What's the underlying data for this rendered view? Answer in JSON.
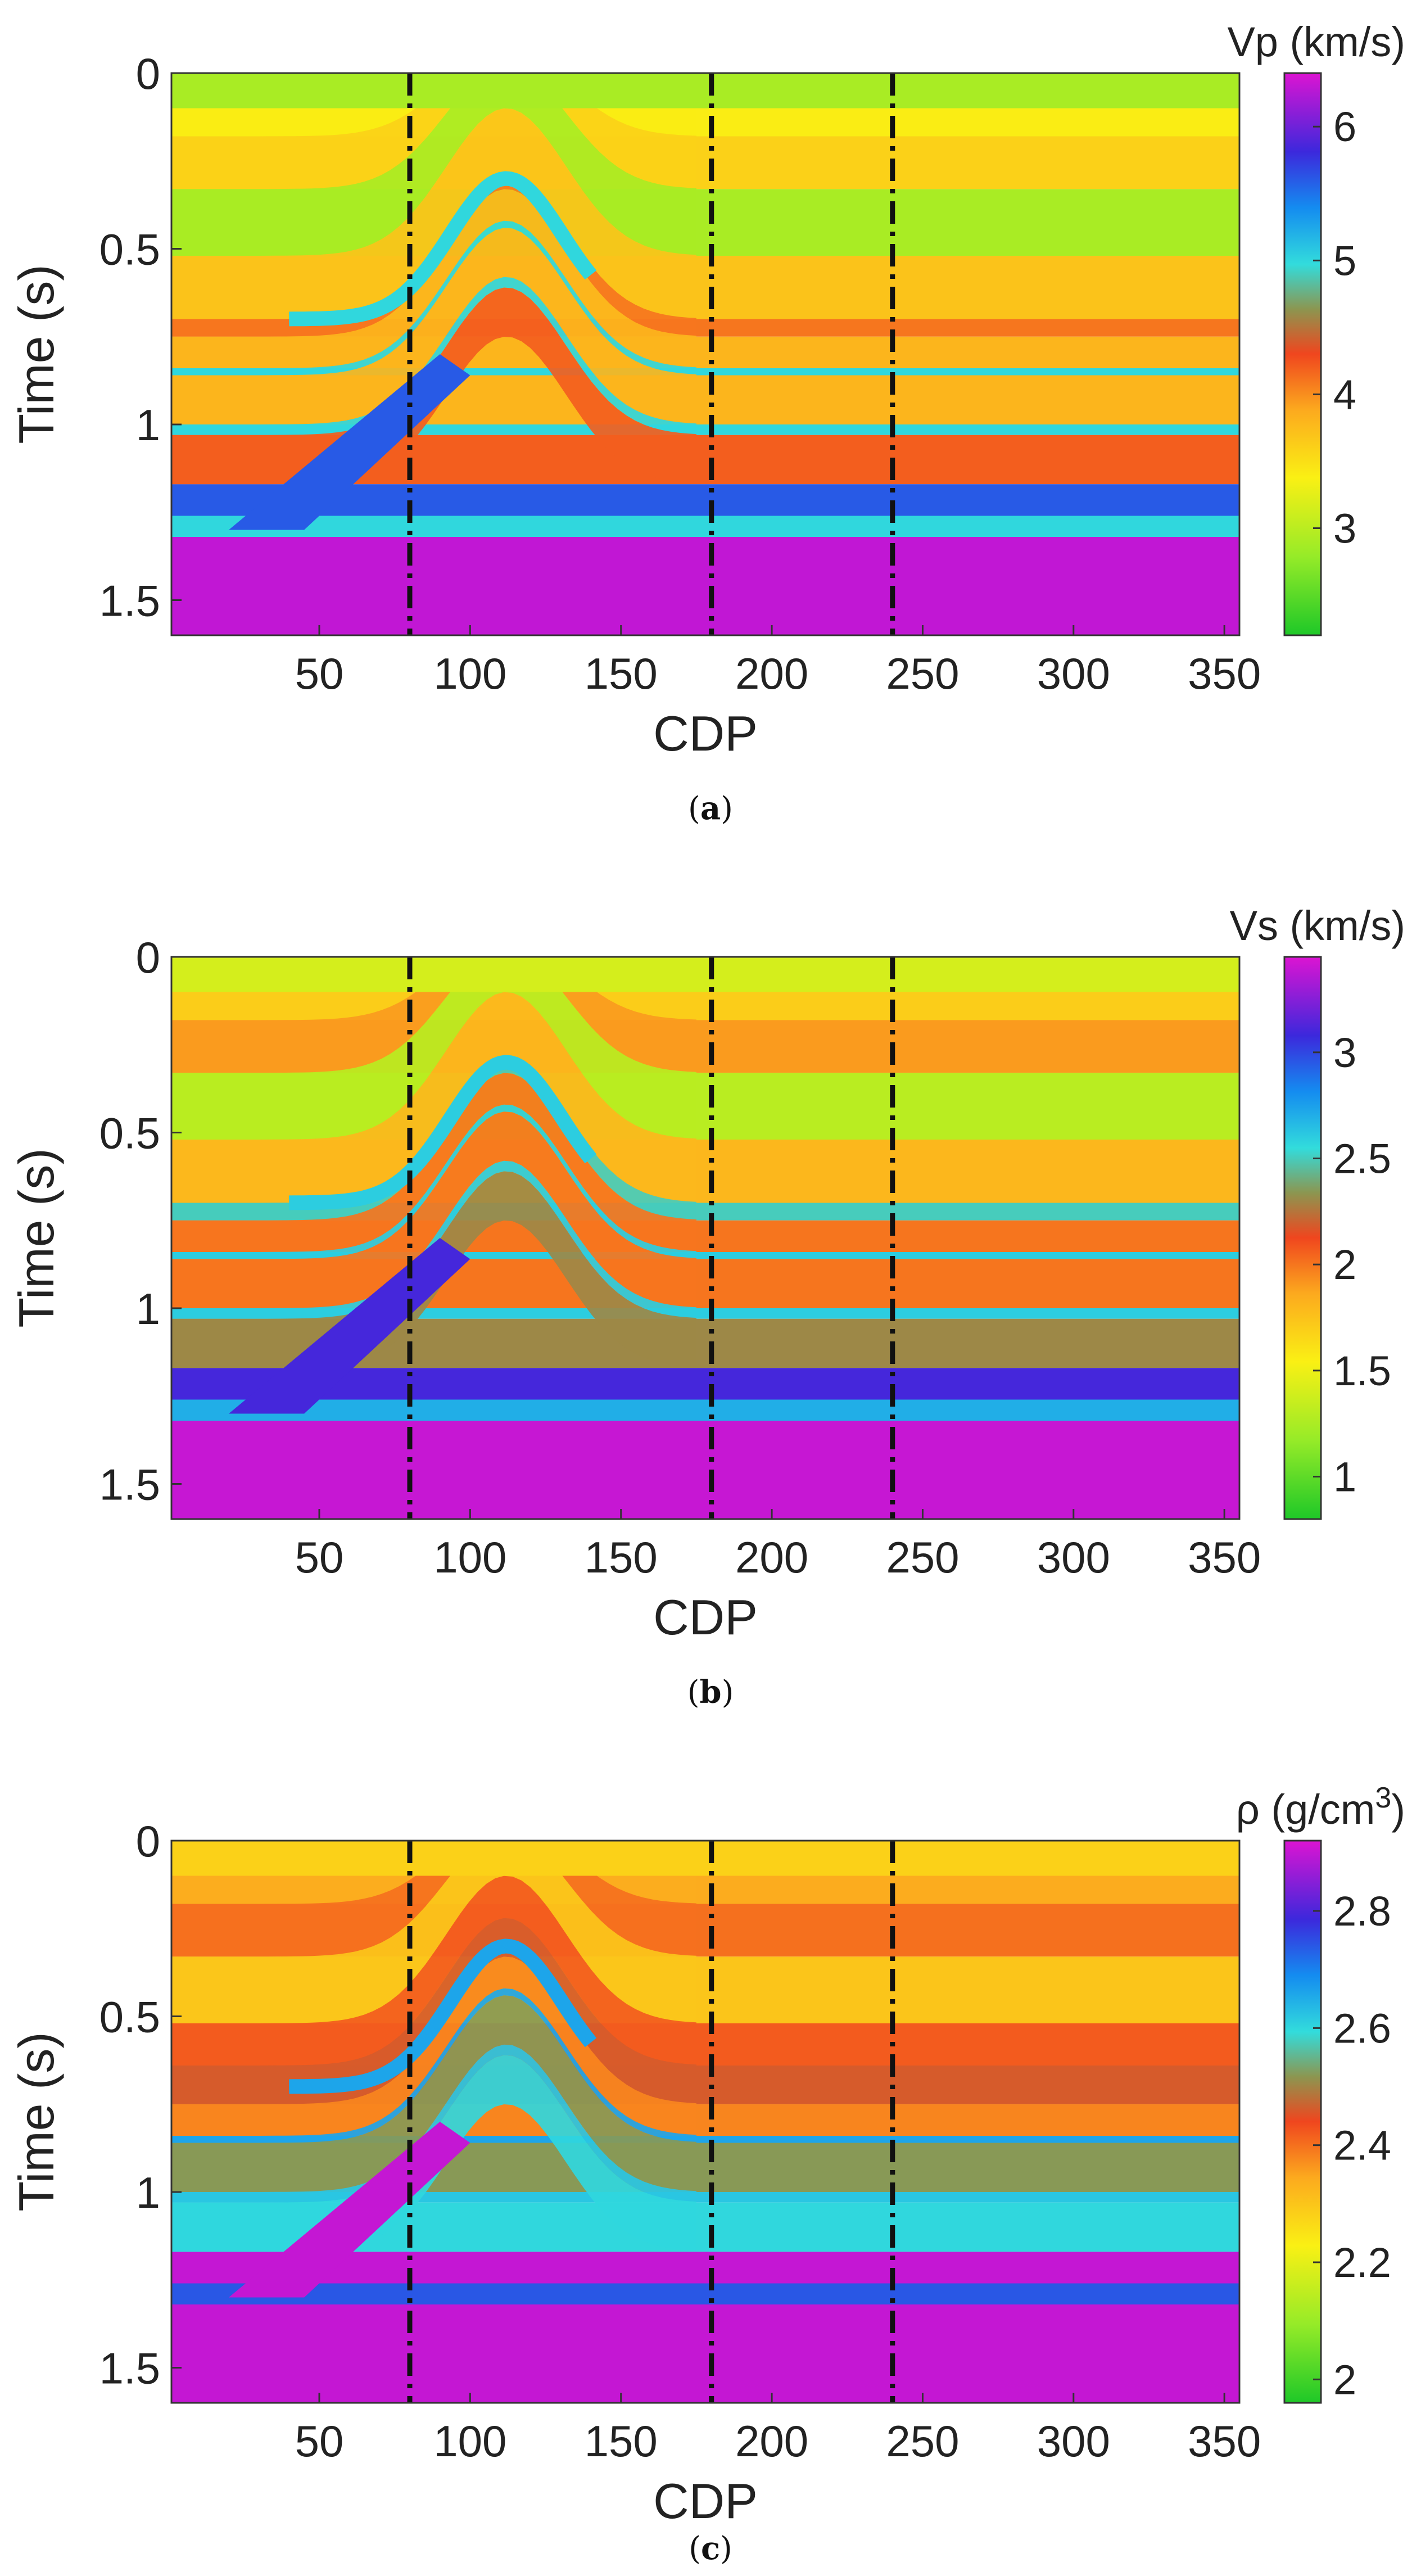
{
  "chart_data": [
    {
      "type": "heatmap",
      "panel_label": "a",
      "title": "",
      "xlabel": "CDP",
      "ylabel": "Time (s)",
      "colorbar_label": "Vp (km/s)",
      "xlim": [
        1,
        355
      ],
      "ylim": [
        0,
        1.6
      ],
      "y_reversed": true,
      "x_ticks": [
        50,
        100,
        150,
        200,
        250,
        300,
        350
      ],
      "y_ticks": [
        0,
        0.5,
        1,
        1.5
      ],
      "y_tick_labels": [
        "0",
        "0.5",
        "1",
        "1.5"
      ],
      "colorbar_range": [
        2.2,
        6.4
      ],
      "colorbar_ticks": [
        3,
        4,
        5,
        6
      ],
      "vertical_lines_cdp": [
        80,
        180,
        240
      ],
      "layers": [
        {
          "top": 0.0,
          "bottom": 0.1,
          "value": 2.9
        },
        {
          "top": 0.1,
          "bottom": 0.18,
          "value": 3.4
        },
        {
          "top": 0.18,
          "bottom": 0.33,
          "value": 3.6
        },
        {
          "top": 0.33,
          "bottom": 0.52,
          "value": 2.9
        },
        {
          "top": 0.52,
          "bottom": 0.7,
          "value": 3.7
        },
        {
          "top": 0.7,
          "bottom": 0.75,
          "value": 4.1
        },
        {
          "top": 0.75,
          "bottom": 0.84,
          "value": 3.8
        },
        {
          "top": 0.84,
          "bottom": 0.86,
          "value": 5.0
        },
        {
          "top": 0.86,
          "bottom": 1.0,
          "value": 3.8
        },
        {
          "top": 1.0,
          "bottom": 1.03,
          "value": 5.0
        },
        {
          "top": 1.03,
          "bottom": 1.17,
          "value": 4.2
        },
        {
          "top": 1.17,
          "bottom": 1.26,
          "value": 5.6
        },
        {
          "top": 1.26,
          "bottom": 1.32,
          "value": 5.0
        },
        {
          "top": 1.32,
          "bottom": 1.6,
          "value": 6.3
        }
      ]
    },
    {
      "type": "heatmap",
      "panel_label": "b",
      "title": "",
      "xlabel": "CDP",
      "ylabel": "Time (s)",
      "colorbar_label": "Vs (km/s)",
      "xlim": [
        1,
        355
      ],
      "ylim": [
        0,
        1.6
      ],
      "y_reversed": true,
      "x_ticks": [
        50,
        100,
        150,
        200,
        250,
        300,
        350
      ],
      "y_ticks": [
        0,
        0.5,
        1,
        1.5
      ],
      "y_tick_labels": [
        "0",
        "0.5",
        "1",
        "1.5"
      ],
      "colorbar_range": [
        0.8,
        3.45
      ],
      "colorbar_ticks": [
        1,
        1.5,
        2,
        2.5,
        3
      ],
      "vertical_lines_cdp": [
        80,
        180,
        240
      ],
      "layers": [
        {
          "top": 0.0,
          "bottom": 0.1,
          "value": 1.4
        },
        {
          "top": 0.1,
          "bottom": 0.18,
          "value": 1.7
        },
        {
          "top": 0.18,
          "bottom": 0.33,
          "value": 1.9
        },
        {
          "top": 0.33,
          "bottom": 0.52,
          "value": 1.3
        },
        {
          "top": 0.52,
          "bottom": 0.7,
          "value": 1.8
        },
        {
          "top": 0.7,
          "bottom": 0.75,
          "value": 2.5
        },
        {
          "top": 0.75,
          "bottom": 0.84,
          "value": 2.0
        },
        {
          "top": 0.84,
          "bottom": 0.86,
          "value": 2.6
        },
        {
          "top": 0.86,
          "bottom": 1.0,
          "value": 2.0
        },
        {
          "top": 1.0,
          "bottom": 1.03,
          "value": 2.6
        },
        {
          "top": 1.03,
          "bottom": 1.17,
          "value": 2.3
        },
        {
          "top": 1.17,
          "bottom": 1.26,
          "value": 3.1
        },
        {
          "top": 1.26,
          "bottom": 1.32,
          "value": 2.7
        },
        {
          "top": 1.32,
          "bottom": 1.6,
          "value": 3.4
        }
      ]
    },
    {
      "type": "heatmap",
      "panel_label": "c",
      "title": "",
      "xlabel": "CDP",
      "ylabel": "Time (s)",
      "colorbar_label": "ρ (g/cm",
      "colorbar_label_sup": "3",
      "colorbar_label_end": ")",
      "xlim": [
        1,
        355
      ],
      "ylim": [
        0,
        1.6
      ],
      "y_reversed": true,
      "x_ticks": [
        50,
        100,
        150,
        200,
        250,
        300,
        350
      ],
      "y_ticks": [
        0,
        0.5,
        1,
        1.5
      ],
      "y_tick_labels": [
        "0",
        "0.5",
        "1",
        "1.5"
      ],
      "colorbar_range": [
        1.96,
        2.92
      ],
      "colorbar_ticks": [
        2,
        2.2,
        2.4,
        2.6,
        2.8
      ],
      "vertical_lines_cdp": [
        80,
        180,
        240
      ],
      "layers": [
        {
          "top": 0.0,
          "bottom": 0.1,
          "value": 2.28
        },
        {
          "top": 0.1,
          "bottom": 0.18,
          "value": 2.34
        },
        {
          "top": 0.18,
          "bottom": 0.33,
          "value": 2.4
        },
        {
          "top": 0.33,
          "bottom": 0.52,
          "value": 2.3
        },
        {
          "top": 0.52,
          "bottom": 0.64,
          "value": 2.42
        },
        {
          "top": 0.64,
          "bottom": 0.75,
          "value": 2.46
        },
        {
          "top": 0.75,
          "bottom": 0.84,
          "value": 2.38
        },
        {
          "top": 0.84,
          "bottom": 0.86,
          "value": 2.66
        },
        {
          "top": 0.86,
          "bottom": 1.0,
          "value": 2.52
        },
        {
          "top": 1.0,
          "bottom": 1.03,
          "value": 2.62
        },
        {
          "top": 1.03,
          "bottom": 1.17,
          "value": 2.6
        },
        {
          "top": 1.17,
          "bottom": 1.26,
          "value": 2.9
        },
        {
          "top": 1.26,
          "bottom": 1.32,
          "value": 2.74
        },
        {
          "top": 1.32,
          "bottom": 1.6,
          "value": 2.9
        }
      ]
    }
  ],
  "captions": [
    "a",
    "b",
    "c"
  ]
}
